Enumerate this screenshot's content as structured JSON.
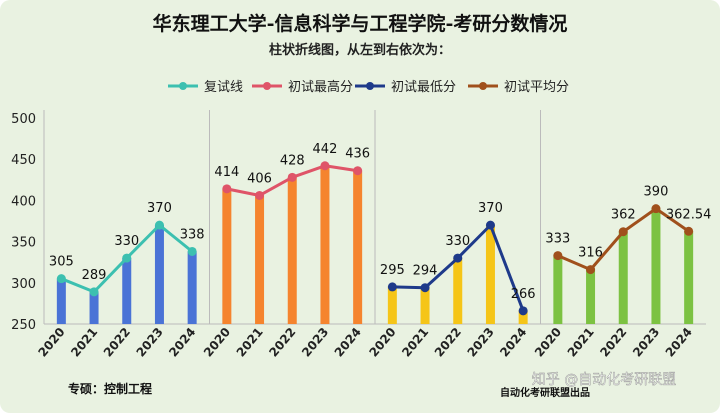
{
  "chart_data": {
    "type": "bar+line",
    "title": "华东理工大学-信息科学与工程学院-考研分数情况",
    "subtitle": "柱状折线图，从左到右依次为：",
    "legend": [
      {
        "name": "复试线",
        "color": "#3cc0b0"
      },
      {
        "name": "初试最高分",
        "color": "#df5468"
      },
      {
        "name": "初试最低分",
        "color": "#1e3a8a"
      },
      {
        "name": "初试平均分",
        "color": "#a0501c"
      }
    ],
    "ylim": [
      250,
      500
    ],
    "yticks": [
      250,
      300,
      350,
      400,
      450,
      500
    ],
    "categories": [
      "2020",
      "2021",
      "2022",
      "2023",
      "2024"
    ],
    "series": [
      {
        "name": "复试线",
        "values": [
          305,
          289,
          330,
          370,
          338
        ],
        "labels": [
          "305",
          "289",
          "330",
          "370",
          "338"
        ],
        "bar_color": "#4a73d6",
        "line_color": "#3cc0b0"
      },
      {
        "name": "初试最高分",
        "values": [
          414,
          406,
          428,
          442,
          436
        ],
        "labels": [
          "414",
          "406",
          "428",
          "442",
          "436"
        ],
        "bar_color": "#f5842e",
        "line_color": "#df5468"
      },
      {
        "name": "初试最低分",
        "values": [
          295,
          294,
          330,
          370,
          266
        ],
        "labels": [
          "295",
          "294",
          "330",
          "370",
          "266"
        ],
        "bar_color": "#f5c518",
        "line_color": "#1e3a8a"
      },
      {
        "name": "初试平均分",
        "values": [
          333,
          316,
          362,
          390,
          362.54
        ],
        "labels": [
          "333",
          "316",
          "362",
          "390",
          "362.54"
        ],
        "bar_color": "#7cc242",
        "line_color": "#a0501c"
      }
    ],
    "grid": false
  },
  "footer": {
    "major": "专硕：控制工程",
    "watermark": "知乎 @自动化考研联盟",
    "source": "自动化考研联盟出品"
  }
}
